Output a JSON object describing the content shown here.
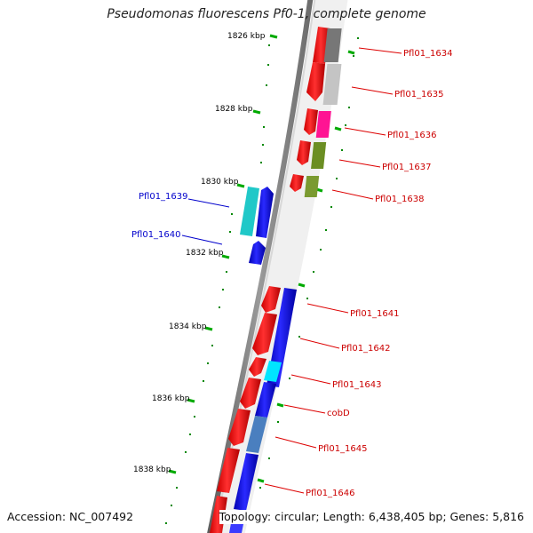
{
  "title": "Pseudomonas fluorescens Pf0-1, complete genome",
  "footer": {
    "accession": "Accession: NC_007492",
    "topology": "Topology: circular; Length: 6,438,405 bp; Genes: 5,816"
  },
  "colors": {
    "forward_gene": "#ff0000",
    "reverse_gene": "#0000ff",
    "reverse_label": "#0000cc",
    "forward_label": "#cc0000",
    "tick": "#00aa00",
    "backbone": "#888888"
  },
  "ticks": [
    {
      "label": "1826 kbp"
    },
    {
      "label": "1828 kbp"
    },
    {
      "label": "1830 kbp"
    },
    {
      "label": "1832 kbp"
    },
    {
      "label": "1834 kbp"
    },
    {
      "label": "1836 kbp"
    },
    {
      "label": "1838 kbp"
    }
  ],
  "gene_labels": [
    {
      "text": "Pfl01_1634",
      "strand": "forward"
    },
    {
      "text": "Pfl01_1635",
      "strand": "forward"
    },
    {
      "text": "Pfl01_1636",
      "strand": "forward"
    },
    {
      "text": "Pfl01_1637",
      "strand": "forward"
    },
    {
      "text": "Pfl01_1638",
      "strand": "forward"
    },
    {
      "text": "Pfl01_1639",
      "strand": "reverse"
    },
    {
      "text": "Pfl01_1640",
      "strand": "reverse"
    },
    {
      "text": "Pfl01_1641",
      "strand": "forward"
    },
    {
      "text": "Pfl01_1642",
      "strand": "forward"
    },
    {
      "text": "Pfl01_1643",
      "strand": "forward"
    },
    {
      "text": "cobD",
      "strand": "forward"
    },
    {
      "text": "Pfl01_1645",
      "strand": "forward"
    },
    {
      "text": "Pfl01_1646",
      "strand": "forward"
    }
  ]
}
